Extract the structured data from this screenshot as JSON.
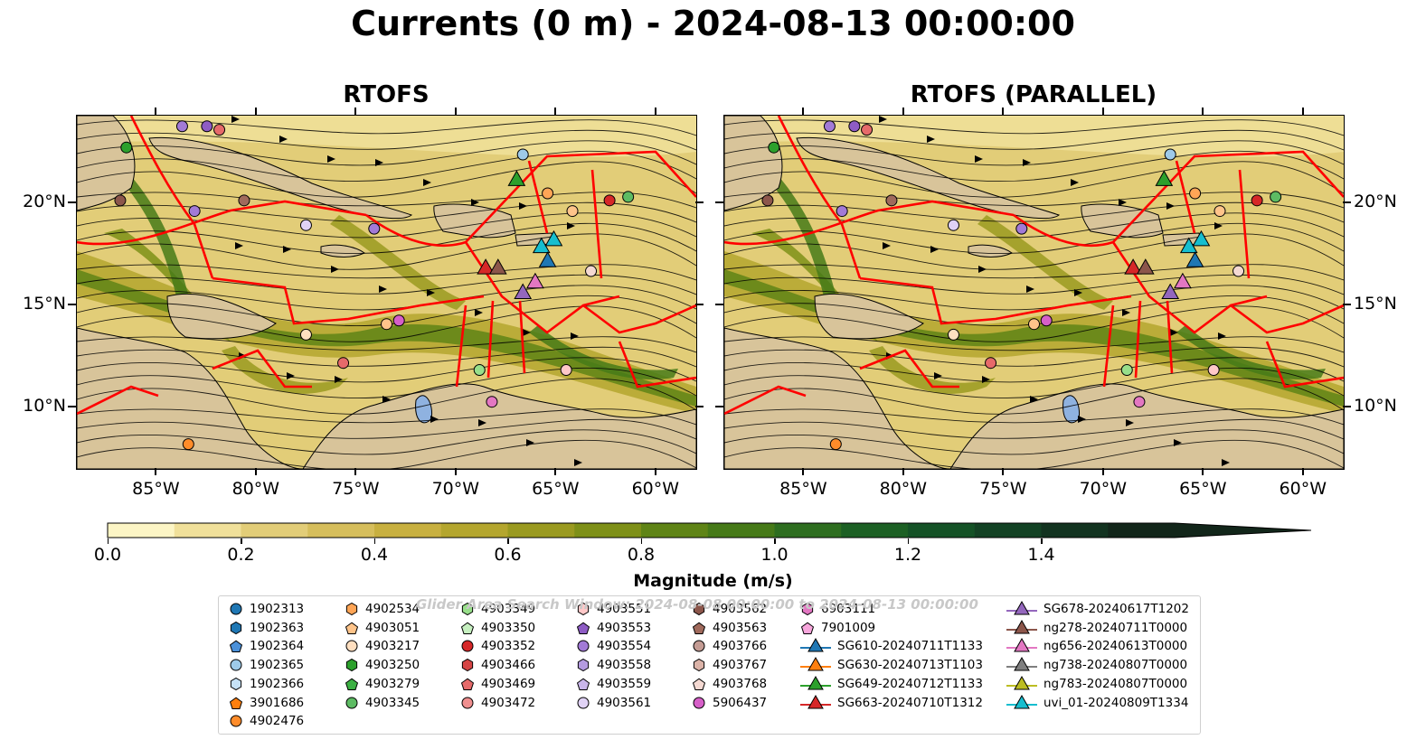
{
  "figure": {
    "title": "Currents (0 m) - 2024-08-13 00:00:00",
    "panels": [
      {
        "title": "RTOFS"
      },
      {
        "title": "RTOFS (PARALLEL)"
      }
    ],
    "lat_ticks": [
      "20°N",
      "15°N",
      "10°N"
    ],
    "lon_ticks": [
      "85°W",
      "80°W",
      "75°W",
      "70°W",
      "65°W",
      "60°W"
    ],
    "lat_values": [
      20,
      15,
      10
    ],
    "lon_values": [
      -85,
      -80,
      -75,
      -70,
      -65,
      -60
    ],
    "extent": {
      "lon": [
        -89,
        -58
      ],
      "lat": [
        7,
        24.3
      ]
    },
    "colors": {
      "land": "#d8c49a",
      "eez_lines": "#ff0000",
      "streamlines": "#000000",
      "lakes": "#8fb2e0",
      "rivers": "#a8b8d0"
    }
  },
  "colorbar": {
    "label": "Magnitude (m/s)",
    "ticks": [
      "0.0",
      "0.2",
      "0.4",
      "0.6",
      "0.8",
      "1.0",
      "1.2",
      "1.4"
    ],
    "tick_values": [
      0,
      0.2,
      0.4,
      0.6,
      0.8,
      1.0,
      1.2,
      1.4
    ],
    "range": [
      0,
      1.6
    ],
    "extend": "max",
    "colors": [
      "#fcf5c5",
      "#f0e09a",
      "#e2cd78",
      "#d6be5c",
      "#c8b040",
      "#b4a62e",
      "#9a9a20",
      "#7e9018",
      "#5f8416",
      "#467a18",
      "#2e6e20",
      "#1c6024",
      "#145226",
      "#134224",
      "#123320",
      "#12261a"
    ]
  },
  "watermark": "Glider Area Search Window: 2024-08-08 00:00:00 to 2024-08-13 00:00:00",
  "legend": {
    "columns": [
      [
        {
          "label": "1902313",
          "shape": "circle",
          "color": "#1f77b4"
        },
        {
          "label": "1902363",
          "shape": "hexagon",
          "color": "#1f77b4"
        },
        {
          "label": "1902364",
          "shape": "pentagon",
          "color": "#4a90d9"
        },
        {
          "label": "1902365",
          "shape": "circle",
          "color": "#9ecae9"
        },
        {
          "label": "1902366",
          "shape": "hexagon",
          "color": "#c6e2f7"
        },
        {
          "label": "3901686",
          "shape": "pentagon",
          "color": "#ff7f0e"
        },
        {
          "label": "4902476",
          "shape": "circle",
          "color": "#ff8c2a"
        }
      ],
      [
        {
          "label": "4902534",
          "shape": "hexagon",
          "color": "#ffa556"
        },
        {
          "label": "4903051",
          "shape": "pentagon",
          "color": "#ffc48a"
        },
        {
          "label": "4903217",
          "shape": "circle",
          "color": "#ffdfc0"
        },
        {
          "label": "4903250",
          "shape": "hexagon",
          "color": "#2ca02c"
        },
        {
          "label": "4903279",
          "shape": "pentagon",
          "color": "#3cb043"
        },
        {
          "label": "4903345",
          "shape": "circle",
          "color": "#5dbb63"
        }
      ],
      [
        {
          "label": "4903349",
          "shape": "hexagon",
          "color": "#98df8a"
        },
        {
          "label": "4903350",
          "shape": "pentagon",
          "color": "#c6f0c0"
        },
        {
          "label": "4903352",
          "shape": "circle",
          "color": "#d62728"
        },
        {
          "label": "4903466",
          "shape": "hexagon",
          "color": "#d64545"
        },
        {
          "label": "4903469",
          "shape": "pentagon",
          "color": "#e66a6a"
        },
        {
          "label": "4903472",
          "shape": "circle",
          "color": "#f08f8f"
        }
      ],
      [
        {
          "label": "4903551",
          "shape": "hexagon",
          "color": "#ffc8c8"
        },
        {
          "label": "4903553",
          "shape": "pentagon",
          "color": "#8e5cc4"
        },
        {
          "label": "4903554",
          "shape": "circle",
          "color": "#a27ad6"
        },
        {
          "label": "4903558",
          "shape": "hexagon",
          "color": "#b49be0"
        },
        {
          "label": "4903559",
          "shape": "pentagon",
          "color": "#c9b6ea"
        },
        {
          "label": "4903561",
          "shape": "circle",
          "color": "#e0d2f5"
        }
      ],
      [
        {
          "label": "4903562",
          "shape": "hexagon",
          "color": "#8c564b"
        },
        {
          "label": "4903563",
          "shape": "pentagon",
          "color": "#a06a5c"
        },
        {
          "label": "4903766",
          "shape": "circle",
          "color": "#c49c94"
        },
        {
          "label": "4903767",
          "shape": "hexagon",
          "color": "#dbb3a8"
        },
        {
          "label": "4903768",
          "shape": "pentagon",
          "color": "#f4d9d2"
        },
        {
          "label": "5906437",
          "shape": "circle",
          "color": "#d65fc8"
        }
      ],
      [
        {
          "label": "6903111",
          "shape": "hexagon",
          "color": "#e377c2"
        },
        {
          "label": "7901009",
          "shape": "pentagon",
          "color": "#f7a6dc"
        },
        {
          "label": "SG610-20240711T1133",
          "shape": "triangle-line",
          "color": "#1f77b4"
        },
        {
          "label": "SG630-20240713T1103",
          "shape": "triangle-line",
          "color": "#ff7f0e"
        },
        {
          "label": "SG649-20240712T1133",
          "shape": "triangle-line",
          "color": "#2ca02c"
        },
        {
          "label": "SG663-20240710T1312",
          "shape": "triangle-line",
          "color": "#d62728"
        }
      ],
      [
        {
          "label": "SG678-20240617T1202",
          "shape": "triangle-line",
          "color": "#9467bd"
        },
        {
          "label": "ng278-20240711T0000",
          "shape": "triangle-line",
          "color": "#8c564b"
        },
        {
          "label": "ng656-20240613T0000",
          "shape": "triangle-line",
          "color": "#e377c2"
        },
        {
          "label": "ng738-20240807T0000",
          "shape": "triangle-line",
          "color": "#7f7f7f"
        },
        {
          "label": "ng783-20240807T0000",
          "shape": "triangle-line",
          "color": "#bcbd22"
        },
        {
          "label": "uvi_01-20240809T1334",
          "shape": "triangle-line",
          "color": "#17becf"
        }
      ]
    ]
  }
}
